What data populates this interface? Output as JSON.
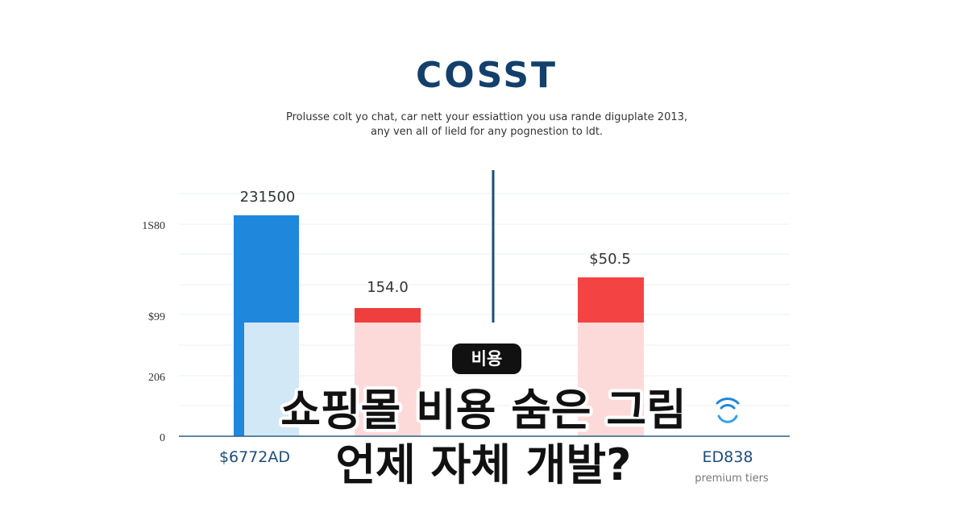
{
  "illustration": {
    "title": "COSST",
    "subtitle": [
      "Prolusse colt yo chat, car nett your essiattion you usa rande diguplate 2013,",
      "any ven all of lield for any pognestion to ldt."
    ],
    "axis_labels": [
      "1S80",
      "$99",
      "206",
      "0"
    ],
    "bar_labels": [
      "231500",
      "154.0",
      "$50.5"
    ],
    "category_labels": [
      "$6772AD",
      "ED838"
    ],
    "category_note": "premium tiers"
  },
  "badge": "비용",
  "headline": [
    "쇼핑몰 비용 숨은 그림",
    "언제 자체 개발?"
  ]
}
